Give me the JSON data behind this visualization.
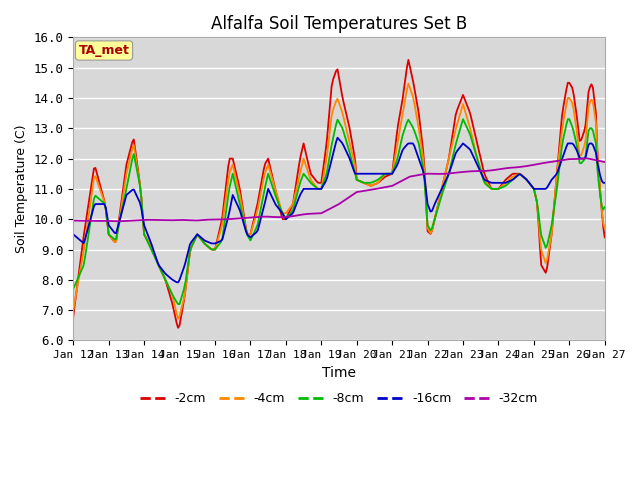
{
  "title": "Alfalfa Soil Temperatures Set B",
  "xlabel": "Time",
  "ylabel": "Soil Temperature (C)",
  "ylim": [
    6.0,
    16.0
  ],
  "yticks": [
    6.0,
    7.0,
    8.0,
    9.0,
    10.0,
    11.0,
    12.0,
    13.0,
    14.0,
    15.0,
    16.0
  ],
  "bg_color": "#d8d8d8",
  "colors": {
    "-2cm": "#dd0000",
    "-4cm": "#ff8800",
    "-8cm": "#00bb00",
    "-16cm": "#0000cc",
    "-32cm": "#aa00aa"
  },
  "x_tick_labels": [
    "Jan 12",
    "Jan 13",
    "Jan 14",
    "Jan 15",
    "Jan 16",
    "Jan 17",
    "Jan 18",
    "Jan 19",
    "Jan 20",
    "Jan 21",
    "Jan 22",
    "Jan 23",
    "Jan 24",
    "Jan 25",
    "Jan 26",
    "Jan 27"
  ],
  "annotation_text": "TA_met",
  "annotation_color": "#aa0000",
  "annotation_bg": "#ffff99"
}
